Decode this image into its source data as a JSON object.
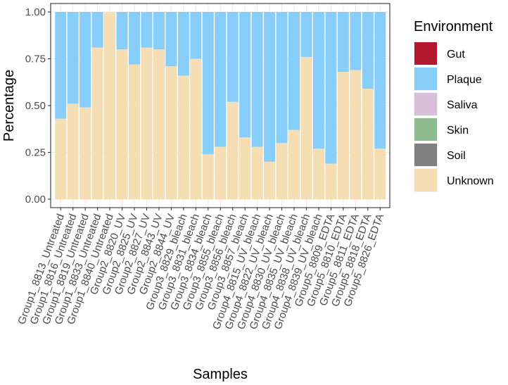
{
  "chart_data": {
    "type": "bar",
    "stacked": true,
    "xlabel": "Samples",
    "ylabel": "Percentage",
    "ylim": [
      0,
      1
    ],
    "yticks": [
      "0.00",
      "0.25",
      "0.50",
      "0.75",
      "1.00"
    ],
    "grid": true,
    "legend_position": "right",
    "legend_title": "Environment",
    "legend": [
      {
        "name": "Gut",
        "color": "#B2182B"
      },
      {
        "name": "Plaque",
        "color": "#87CEFA"
      },
      {
        "name": "Saliva",
        "color": "#D8BFD8"
      },
      {
        "name": "Skin",
        "color": "#8FBC8F"
      },
      {
        "name": "Soil",
        "color": "#808080"
      },
      {
        "name": "Unknown",
        "color": "#F5DEB3"
      }
    ],
    "categories": [
      "Group1_8813_Untreated",
      "Group1_8816_Untreated",
      "Group1_8819_Untreated",
      "Group1_8833_Untreated",
      "Group1_8840_Untreated",
      "Group2_8820_UV",
      "Group2_8825_UV",
      "Group2_8827_UV",
      "Group2_8843_UV",
      "Group2_8844_UV",
      "Group3_8829_bleach",
      "Group3_8831_bleach",
      "Group3_8834_bleach",
      "Group3_8855_bleach",
      "Group3_8856_bleach",
      "Group3_8857_bleach",
      "Group4_8815_UV_bleach",
      "Group4_8822_UV_bleach",
      "Group4_8830_UV_bleach",
      "Group4_8835_UV_bleach",
      "Group4_8838_UV_bleach",
      "Group4_8839_UV_bleach",
      "Group5_8809_EDTA",
      "Group5_8810_EDTA",
      "Group5_8811_EDTA",
      "Group5_8818_EDTA",
      "Group5_8826_EDTA"
    ],
    "series": [
      {
        "name": "Unknown",
        "values": [
          0.43,
          0.51,
          0.49,
          0.81,
          1.0,
          0.8,
          0.72,
          0.81,
          0.8,
          0.71,
          0.66,
          0.75,
          0.24,
          0.28,
          0.52,
          0.33,
          0.28,
          0.2,
          0.3,
          0.37,
          0.76,
          0.27,
          0.19,
          0.68,
          0.69,
          0.59,
          0.27
        ]
      },
      {
        "name": "Plaque",
        "values": [
          0.57,
          0.49,
          0.51,
          0.19,
          0.0,
          0.2,
          0.28,
          0.19,
          0.2,
          0.29,
          0.34,
          0.25,
          0.76,
          0.72,
          0.48,
          0.67,
          0.72,
          0.8,
          0.7,
          0.63,
          0.24,
          0.73,
          0.81,
          0.32,
          0.31,
          0.41,
          0.73
        ]
      }
    ]
  }
}
